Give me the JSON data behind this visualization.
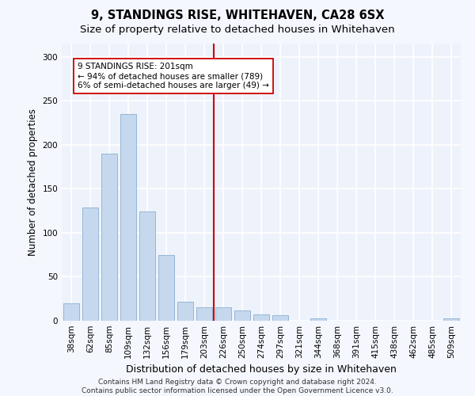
{
  "title": "9, STANDINGS RISE, WHITEHAVEN, CA28 6SX",
  "subtitle": "Size of property relative to detached houses in Whitehaven",
  "xlabel": "Distribution of detached houses by size in Whitehaven",
  "ylabel": "Number of detached properties",
  "bar_color": "#c5d8ee",
  "bar_edge_color": "#8ab0d0",
  "background_color": "#eef2fb",
  "grid_color": "#ffffff",
  "categories": [
    "38sqm",
    "62sqm",
    "85sqm",
    "109sqm",
    "132sqm",
    "156sqm",
    "179sqm",
    "203sqm",
    "226sqm",
    "250sqm",
    "274sqm",
    "297sqm",
    "321sqm",
    "344sqm",
    "368sqm",
    "391sqm",
    "415sqm",
    "438sqm",
    "462sqm",
    "485sqm",
    "509sqm"
  ],
  "values": [
    20,
    129,
    190,
    235,
    124,
    75,
    22,
    15,
    15,
    12,
    7,
    6,
    0,
    3,
    0,
    0,
    0,
    0,
    0,
    0,
    3
  ],
  "vline_index": 7,
  "vline_color": "#cc0000",
  "annotation_line1": "9 STANDINGS RISE: 201sqm",
  "annotation_line2": "← 94% of detached houses are smaller (789)",
  "annotation_line3": "6% of semi-detached houses are larger (49) →",
  "ylim": [
    0,
    315
  ],
  "yticks": [
    0,
    50,
    100,
    150,
    200,
    250,
    300
  ],
  "footer_text": "Contains HM Land Registry data © Crown copyright and database right 2024.\nContains public sector information licensed under the Open Government Licence v3.0.",
  "title_fontsize": 10.5,
  "subtitle_fontsize": 9.5,
  "xlabel_fontsize": 9,
  "ylabel_fontsize": 8.5,
  "tick_fontsize": 7.5,
  "annotation_fontsize": 7.5,
  "footer_fontsize": 6.5
}
